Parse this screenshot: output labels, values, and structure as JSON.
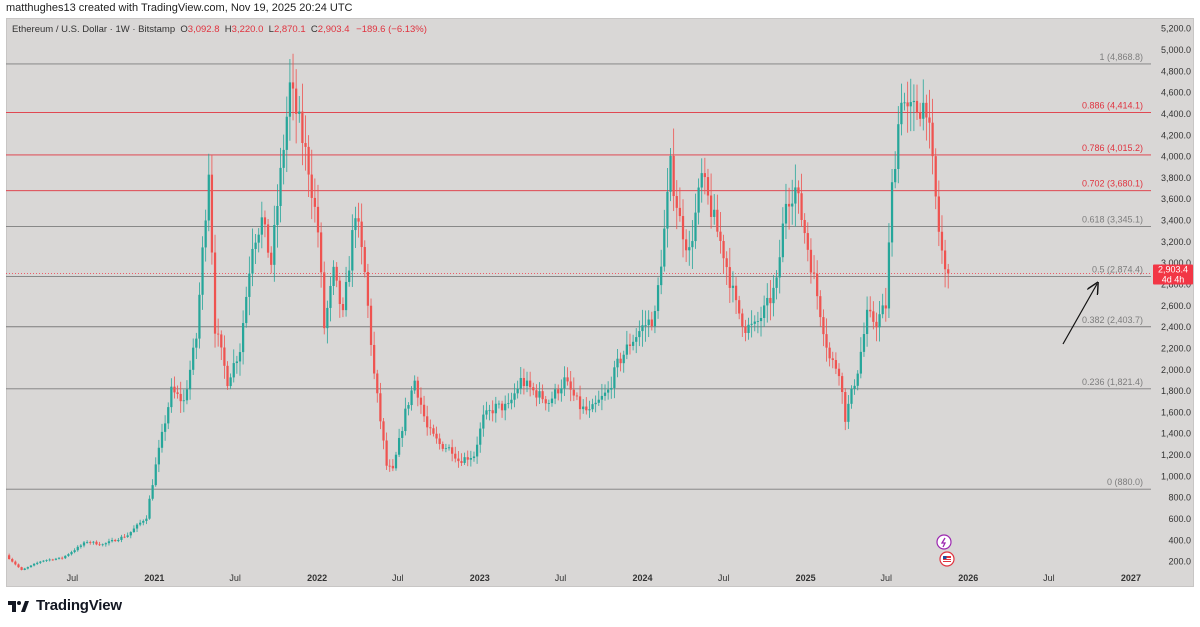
{
  "credit": "matthughes13 created with TradingView.com, Nov 19, 2025 20:24 UTC",
  "header": {
    "symbol": "Ethereum / U.S. Dollar · 1W · Bitstamp",
    "o_label": "O",
    "o_value": "3,092.8",
    "h_label": "H",
    "h_value": "3,220.0",
    "l_label": "L",
    "l_value": "2,870.1",
    "c_label": "C",
    "c_value": "2,903.4",
    "change": "−189.6 (−6.13%)"
  },
  "brand": {
    "name": "TradingView",
    "logo_icon": "tradingview-logo-icon"
  },
  "colors": {
    "background": "#d9d7d6",
    "up": "#26a69a",
    "down": "#ef5350",
    "fib_gray": "#7d7d7d",
    "fib_red": "#e0333f",
    "price_tag": "#f23645"
  },
  "chart_data": {
    "type": "candlestick",
    "symbol": "ETH/USD",
    "interval": "1W",
    "exchange": "Bitstamp",
    "ylim": [
      150,
      5300
    ],
    "y_ticks": [
      "200.0",
      "400.0",
      "600.0",
      "800.0",
      "1,000.0",
      "1,200.0",
      "1,400.0",
      "1,600.0",
      "1,800.0",
      "2,000.0",
      "2,200.0",
      "2,400.0",
      "2,600.0",
      "2,800.0",
      "3,000.0",
      "3,200.0",
      "3,400.0",
      "3,600.0",
      "3,800.0",
      "4,000.0",
      "4,200.0",
      "4,400.0",
      "4,600.0",
      "4,800.0",
      "5,000.0",
      "5,200.0"
    ],
    "x_ticks": [
      {
        "label": "Jul",
        "bold": false
      },
      {
        "label": "2021",
        "bold": true
      },
      {
        "label": "Jul",
        "bold": false
      },
      {
        "label": "2022",
        "bold": true
      },
      {
        "label": "Jul",
        "bold": false
      },
      {
        "label": "2023",
        "bold": true
      },
      {
        "label": "Jul",
        "bold": false
      },
      {
        "label": "2024",
        "bold": true
      },
      {
        "label": "Jul",
        "bold": false
      },
      {
        "label": "2025",
        "bold": true
      },
      {
        "label": "Jul",
        "bold": false
      },
      {
        "label": "2026",
        "bold": true
      },
      {
        "label": "Jul",
        "bold": false
      },
      {
        "label": "2027",
        "bold": true
      }
    ],
    "fib_levels": [
      {
        "ratio": "1",
        "value": 4868.8,
        "label": "1 (4,868.8)",
        "color": "gray"
      },
      {
        "ratio": "0.886",
        "value": 4414.1,
        "label": "0.886 (4,414.1)",
        "color": "red"
      },
      {
        "ratio": "0.786",
        "value": 4015.2,
        "label": "0.786 (4,015.2)",
        "color": "red"
      },
      {
        "ratio": "0.702",
        "value": 3680.1,
        "label": "0.702 (3,680.1)",
        "color": "red"
      },
      {
        "ratio": "0.618",
        "value": 3345.1,
        "label": "0.618 (3,345.1)",
        "color": "gray"
      },
      {
        "ratio": "0.5",
        "value": 2874.4,
        "label": "0.5 (2,874.4)",
        "color": "gray"
      },
      {
        "ratio": "0.382",
        "value": 2403.7,
        "label": "0.382 (2,403.7)",
        "color": "gray"
      },
      {
        "ratio": "0.236",
        "value": 1821.4,
        "label": "0.236 (1,821.4)",
        "color": "gray"
      },
      {
        "ratio": "0",
        "value": 880.0,
        "label": "0 (880.0)",
        "color": "gray"
      }
    ],
    "last_price": {
      "value": 2903.4,
      "label": "2,903.4",
      "countdown": "4d 4h"
    },
    "close_path": [
      [
        "2020-02-10",
        260
      ],
      [
        "2020-03-16",
        120
      ],
      [
        "2020-05-01",
        210
      ],
      [
        "2020-06-15",
        235
      ],
      [
        "2020-08-10",
        390
      ],
      [
        "2020-09-14",
        360
      ],
      [
        "2020-11-09",
        450
      ],
      [
        "2020-12-21",
        620
      ],
      [
        "2021-01-11",
        1100
      ],
      [
        "2021-02-15",
        1800
      ],
      [
        "2021-03-15",
        1700
      ],
      [
        "2021-04-12",
        2300
      ],
      [
        "2021-05-10",
        3900
      ],
      [
        "2021-05-24",
        2400
      ],
      [
        "2021-06-21",
        1900
      ],
      [
        "2021-07-19",
        2200
      ],
      [
        "2021-08-16",
        3200
      ],
      [
        "2021-09-06",
        3400
      ],
      [
        "2021-09-27",
        3000
      ],
      [
        "2021-10-25",
        4100
      ],
      [
        "2021-11-08",
        4650
      ],
      [
        "2021-11-29",
        4300
      ],
      [
        "2021-12-20",
        3900
      ],
      [
        "2022-01-10",
        3300
      ],
      [
        "2022-01-24",
        2400
      ],
      [
        "2022-02-14",
        2900
      ],
      [
        "2022-03-07",
        2500
      ],
      [
        "2022-04-04",
        3500
      ],
      [
        "2022-04-25",
        2900
      ],
      [
        "2022-05-16",
        1950
      ],
      [
        "2022-06-13",
        1100
      ],
      [
        "2022-06-27",
        1050
      ],
      [
        "2022-07-25",
        1600
      ],
      [
        "2022-08-15",
        1900
      ],
      [
        "2022-09-12",
        1450
      ],
      [
        "2022-10-10",
        1300
      ],
      [
        "2022-11-07",
        1250
      ],
      [
        "2022-11-21",
        1150
      ],
      [
        "2022-12-26",
        1200
      ],
      [
        "2023-01-16",
        1550
      ],
      [
        "2023-02-13",
        1650
      ],
      [
        "2023-03-13",
        1650
      ],
      [
        "2023-04-10",
        1900
      ],
      [
        "2023-05-08",
        1800
      ],
      [
        "2023-06-12",
        1700
      ],
      [
        "2023-07-17",
        1900
      ],
      [
        "2023-08-21",
        1650
      ],
      [
        "2023-09-11",
        1600
      ],
      [
        "2023-10-23",
        1800
      ],
      [
        "2023-11-13",
        2050
      ],
      [
        "2023-12-11",
        2250
      ],
      [
        "2024-01-08",
        2400
      ],
      [
        "2024-02-05",
        2500
      ],
      [
        "2024-02-26",
        3300
      ],
      [
        "2024-03-11",
        3900
      ],
      [
        "2024-04-01",
        3400
      ],
      [
        "2024-04-22",
        3100
      ],
      [
        "2024-05-20",
        3800
      ],
      [
        "2024-06-10",
        3500
      ],
      [
        "2024-07-08",
        3100
      ],
      [
        "2024-08-05",
        2600
      ],
      [
        "2024-08-26",
        2400
      ],
      [
        "2024-09-16",
        2400
      ],
      [
        "2024-10-14",
        2600
      ],
      [
        "2024-11-04",
        2800
      ],
      [
        "2024-11-25",
        3600
      ],
      [
        "2024-12-16",
        3700
      ],
      [
        "2025-01-06",
        3300
      ],
      [
        "2025-02-03",
        2700
      ],
      [
        "2025-03-03",
        2100
      ],
      [
        "2025-03-24",
        2000
      ],
      [
        "2025-04-07",
        1550
      ],
      [
        "2025-05-05",
        2000
      ],
      [
        "2025-05-26",
        2500
      ],
      [
        "2025-06-16",
        2450
      ],
      [
        "2025-07-07",
        2600
      ],
      [
        "2025-07-21",
        3700
      ],
      [
        "2025-08-11",
        4600
      ],
      [
        "2025-08-25",
        4400
      ],
      [
        "2025-09-15",
        4450
      ],
      [
        "2025-10-06",
        4500
      ],
      [
        "2025-10-20",
        3900
      ],
      [
        "2025-11-03",
        3300
      ],
      [
        "2025-11-17",
        2903.4
      ]
    ]
  }
}
